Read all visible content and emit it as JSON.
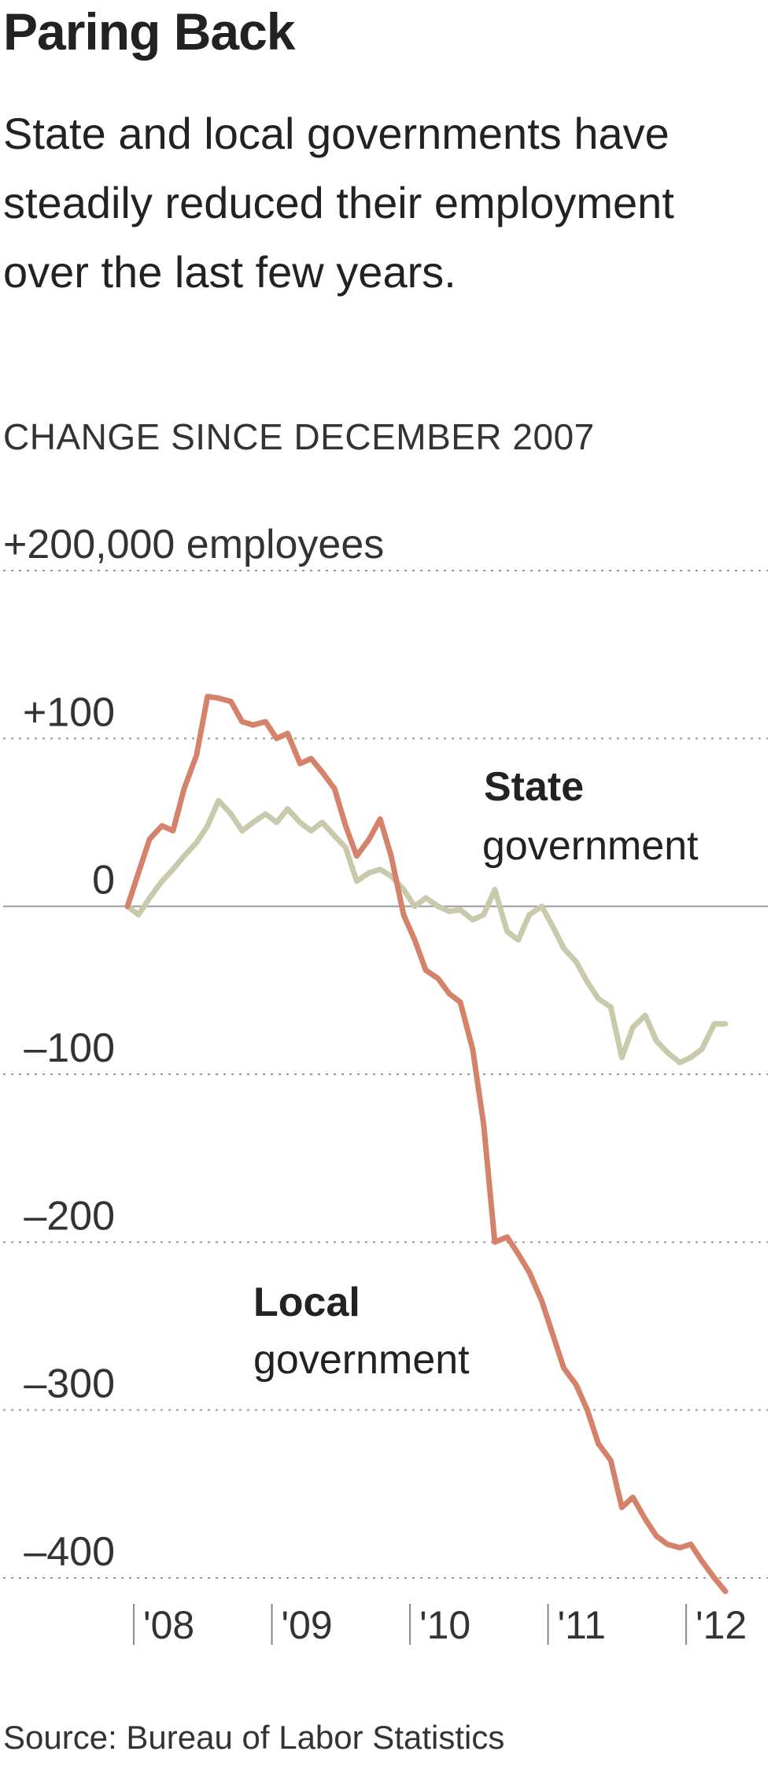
{
  "chart_data": {
    "type": "line",
    "title": "Paring Back",
    "subtitle": "State and local governments have steadily reduced their employment over the last few years.",
    "kicker": "CHANGE SINCE DECEMBER 2007",
    "source": "Source: Bureau of Labor Statistics",
    "ylim": [
      -410,
      200
    ],
    "y_ticks": [
      {
        "value": 200,
        "label": "+200,000 employees"
      },
      {
        "value": 100,
        "label": "+100"
      },
      {
        "value": 0,
        "label": "0"
      },
      {
        "value": -100,
        "label": "–100"
      },
      {
        "value": -200,
        "label": "–200"
      },
      {
        "value": -300,
        "label": "–300"
      },
      {
        "value": -400,
        "label": "–400"
      }
    ],
    "x_ticks": [
      {
        "value": 2008,
        "label": "'08"
      },
      {
        "value": 2009,
        "label": "'09"
      },
      {
        "value": 2010,
        "label": "'10"
      },
      {
        "value": 2011,
        "label": "'11"
      },
      {
        "value": 2012,
        "label": "'12"
      }
    ],
    "xlim": [
      2007.92,
      2012.42
    ],
    "grid": true,
    "series": [
      {
        "name": "Local government",
        "color": "#d4826a",
        "x": [
          2007.92,
          2008.0,
          2008.08,
          2008.17,
          2008.25,
          2008.33,
          2008.42,
          2008.5,
          2008.58,
          2008.67,
          2008.75,
          2008.83,
          2008.92,
          2009.0,
          2009.08,
          2009.17,
          2009.25,
          2009.33,
          2009.42,
          2009.5,
          2009.58,
          2009.67,
          2009.75,
          2009.83,
          2009.92,
          2010.0,
          2010.08,
          2010.17,
          2010.25,
          2010.33,
          2010.42,
          2010.5,
          2010.58,
          2010.67,
          2010.75,
          2010.83,
          2010.92,
          2011.0,
          2011.08,
          2011.17,
          2011.25,
          2011.33,
          2011.42,
          2011.5,
          2011.58,
          2011.67,
          2011.75,
          2011.83,
          2011.92,
          2012.0,
          2012.08,
          2012.17,
          2012.25
        ],
        "y": [
          0,
          20,
          40,
          48,
          45,
          70,
          90,
          125,
          124,
          122,
          110,
          108,
          110,
          100,
          103,
          85,
          88,
          80,
          70,
          48,
          30,
          40,
          52,
          30,
          -5,
          -20,
          -38,
          -43,
          -52,
          -57,
          -85,
          -130,
          -200,
          -197,
          -207,
          -218,
          -235,
          -255,
          -275,
          -285,
          -300,
          -320,
          -330,
          -358,
          -352,
          -365,
          -375,
          -380,
          -382,
          -380,
          -390,
          -400,
          -408
        ]
      },
      {
        "name": "State government",
        "color": "#c9c9ac",
        "x": [
          2007.92,
          2008.0,
          2008.08,
          2008.17,
          2008.25,
          2008.33,
          2008.42,
          2008.5,
          2008.58,
          2008.67,
          2008.75,
          2008.83,
          2008.92,
          2009.0,
          2009.08,
          2009.17,
          2009.25,
          2009.33,
          2009.42,
          2009.5,
          2009.58,
          2009.67,
          2009.75,
          2009.83,
          2009.92,
          2010.0,
          2010.08,
          2010.17,
          2010.25,
          2010.33,
          2010.42,
          2010.5,
          2010.58,
          2010.67,
          2010.75,
          2010.83,
          2010.92,
          2011.0,
          2011.08,
          2011.17,
          2011.25,
          2011.33,
          2011.42,
          2011.5,
          2011.58,
          2011.67,
          2011.75,
          2011.83,
          2011.92,
          2012.0,
          2012.08,
          2012.17,
          2012.25
        ],
        "y": [
          0,
          -5,
          5,
          15,
          22,
          30,
          38,
          48,
          63,
          55,
          45,
          50,
          55,
          50,
          58,
          50,
          45,
          50,
          42,
          35,
          15,
          20,
          22,
          18,
          10,
          0,
          5,
          0,
          -3,
          -2,
          -8,
          -5,
          10,
          -15,
          -20,
          -5,
          0,
          -12,
          -25,
          -33,
          -45,
          -55,
          -60,
          -90,
          -72,
          -65,
          -80,
          -87,
          -93,
          -90,
          -85,
          -70,
          -70
        ]
      }
    ],
    "annotations": {
      "state": {
        "bold": "State",
        "normal": "government"
      },
      "local": {
        "bold": "Local",
        "normal": "government"
      }
    }
  }
}
